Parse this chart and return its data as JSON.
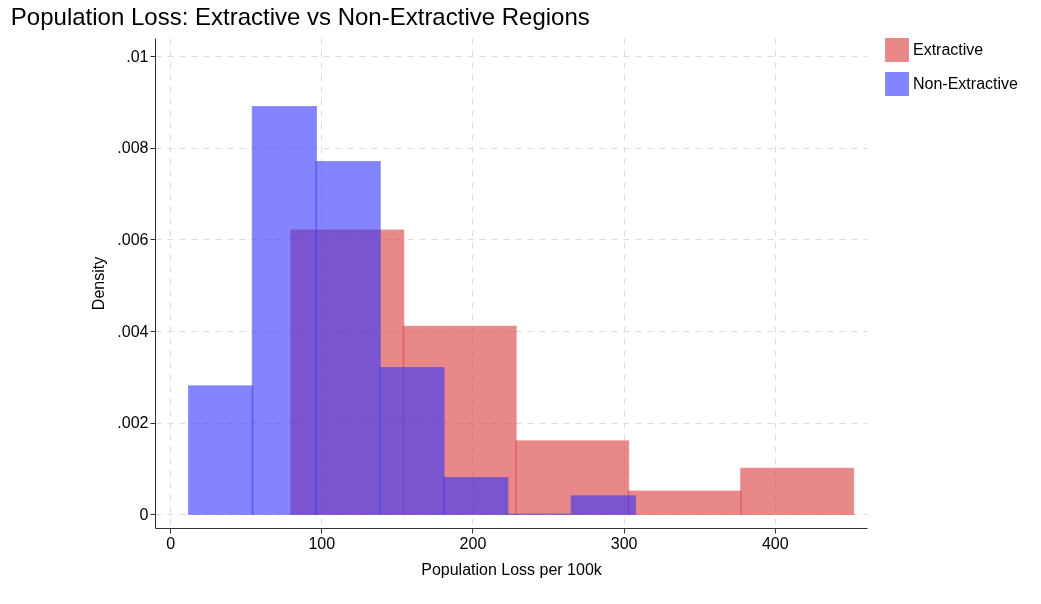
{
  "chart_data": {
    "type": "histogram",
    "title": "Population Loss: Extractive vs Non-Extractive Regions",
    "xlabel": "Population Loss per 100k",
    "ylabel": "Density",
    "series": [
      {
        "name": "Extractive",
        "color": "#d93a3a",
        "values": [
          0.0062,
          0.0041,
          0.0016,
          0.0005,
          0.001
        ]
      },
      {
        "name": "Non-Extractive",
        "color": "#3333ff",
        "bins": [
          12.3,
          54.5,
          96.7,
          138.9,
          181.1,
          223.3,
          265.5,
          307.7
        ],
        "values": [
          0.0028,
          0.0089,
          0.0077,
          0.0032,
          0.0008,
          0,
          0.0004
        ]
      }
    ],
    "bins": [
      80,
      154.4,
      228.8,
      303.2,
      377.6,
      452
    ],
    "xlim": [
      -10,
      461
    ],
    "ylim": [
      -0.0003,
      0.0104
    ],
    "xticks": [
      0,
      100,
      200,
      300,
      400
    ],
    "yticks": [
      {
        "value": 0,
        "label": "0"
      },
      {
        "value": 0.002,
        "label": ".002"
      },
      {
        "value": 0.004,
        "label": ".004"
      },
      {
        "value": 0.006,
        "label": ".006"
      },
      {
        "value": 0.008,
        "label": ".008"
      },
      {
        "value": 0.01,
        "label": ".01"
      }
    ],
    "grid": true,
    "legend": "right"
  }
}
